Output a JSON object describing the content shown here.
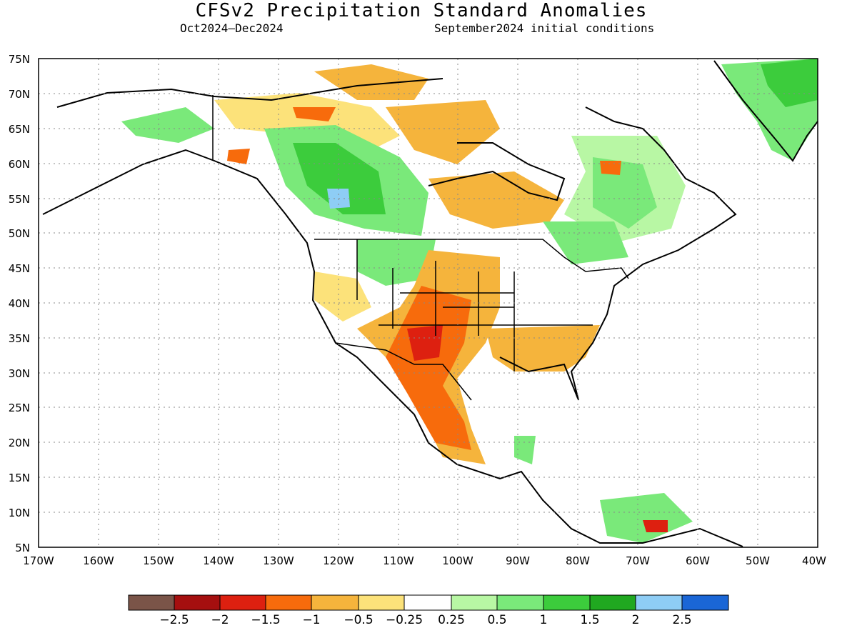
{
  "title": "CFSv2 Precipitation Standard Anomalies",
  "period": "Oct2024–Dec2024",
  "initial_conditions": "September2024 initial conditions",
  "map": {
    "lat_labels": [
      "75N",
      "70N",
      "65N",
      "60N",
      "55N",
      "50N",
      "45N",
      "40N",
      "35N",
      "30N",
      "25N",
      "20N",
      "15N",
      "10N",
      "5N"
    ],
    "lon_labels": [
      "170W",
      "160W",
      "150W",
      "140W",
      "130W",
      "120W",
      "110W",
      "100W",
      "90W",
      "80W",
      "70W",
      "60W",
      "50W",
      "40W"
    ],
    "lat_range": [
      5,
      75
    ],
    "lon_range": [
      -170,
      -40
    ]
  },
  "legend": {
    "labels": [
      "−2.5",
      "−2",
      "−1.5",
      "−1",
      "−0.5",
      "−0.25",
      "0.25",
      "0.5",
      "1",
      "1.5",
      "2",
      "2.5"
    ],
    "colors": [
      "#7a5448",
      "#a50f0f",
      "#dd2010",
      "#f76b0c",
      "#f5b43c",
      "#fce27a",
      "#ffffff",
      "#b8f7a4",
      "#7ae97a",
      "#3ccc3c",
      "#20a820",
      "#8ecdf5",
      "#1a66d6"
    ]
  }
}
